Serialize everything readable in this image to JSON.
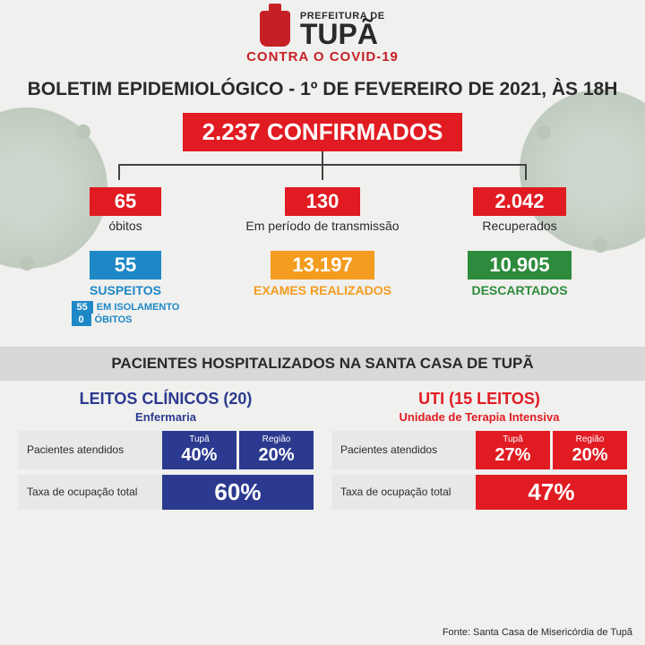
{
  "header": {
    "prefeitura": "PREFEITURA DE",
    "city": "TUPÃ",
    "contra": "CONTRA O COVID-19"
  },
  "title": "BOLETIM EPIDEMIOLÓGICO - 1º DE FEVEREIRO DE 2021, ÀS 18H",
  "confirmed": {
    "value": "2.237  CONFIRMADOS"
  },
  "top": [
    {
      "value": "65",
      "label": "óbitos"
    },
    {
      "value": "130",
      "label": "Em período de transmissão"
    },
    {
      "value": "2.042",
      "label": "Recuperados"
    }
  ],
  "mid": {
    "suspeitos": {
      "value": "55",
      "label": "SUSPEITOS",
      "isol_badge": "55",
      "isol_label": "EM ISOLAMENTO",
      "ob_badge": "0",
      "ob_label": "ÓBITOS"
    },
    "exames": {
      "value": "13.197",
      "label": "EXAMES REALIZADOS"
    },
    "descartados": {
      "value": "10.905",
      "label": "DESCARTADOS"
    }
  },
  "section": "PACIENTES HOSPITALIZADOS NA SANTA CASA DE TUPÃ",
  "clinicos": {
    "title": "LEITOS CLÍNICOS (20)",
    "sub": "Enfermaria",
    "row1_label": "Pacientes atendidos",
    "h1": "Tupã",
    "v1": "40%",
    "h2": "Região",
    "v2": "20%",
    "row2_label": "Taxa de ocupação total",
    "total": "60%"
  },
  "uti": {
    "title": "UTI (15 LEITOS)",
    "sub": "Unidade de Terapia Intensiva",
    "row1_label": "Pacientes atendidos",
    "h1": "Tupã",
    "v1": "27%",
    "h2": "Região",
    "v2": "20%",
    "row2_label": "Taxa de ocupação total",
    "total": "47%"
  },
  "source": "Fonte: Santa Casa de Misericórdia de Tupã"
}
